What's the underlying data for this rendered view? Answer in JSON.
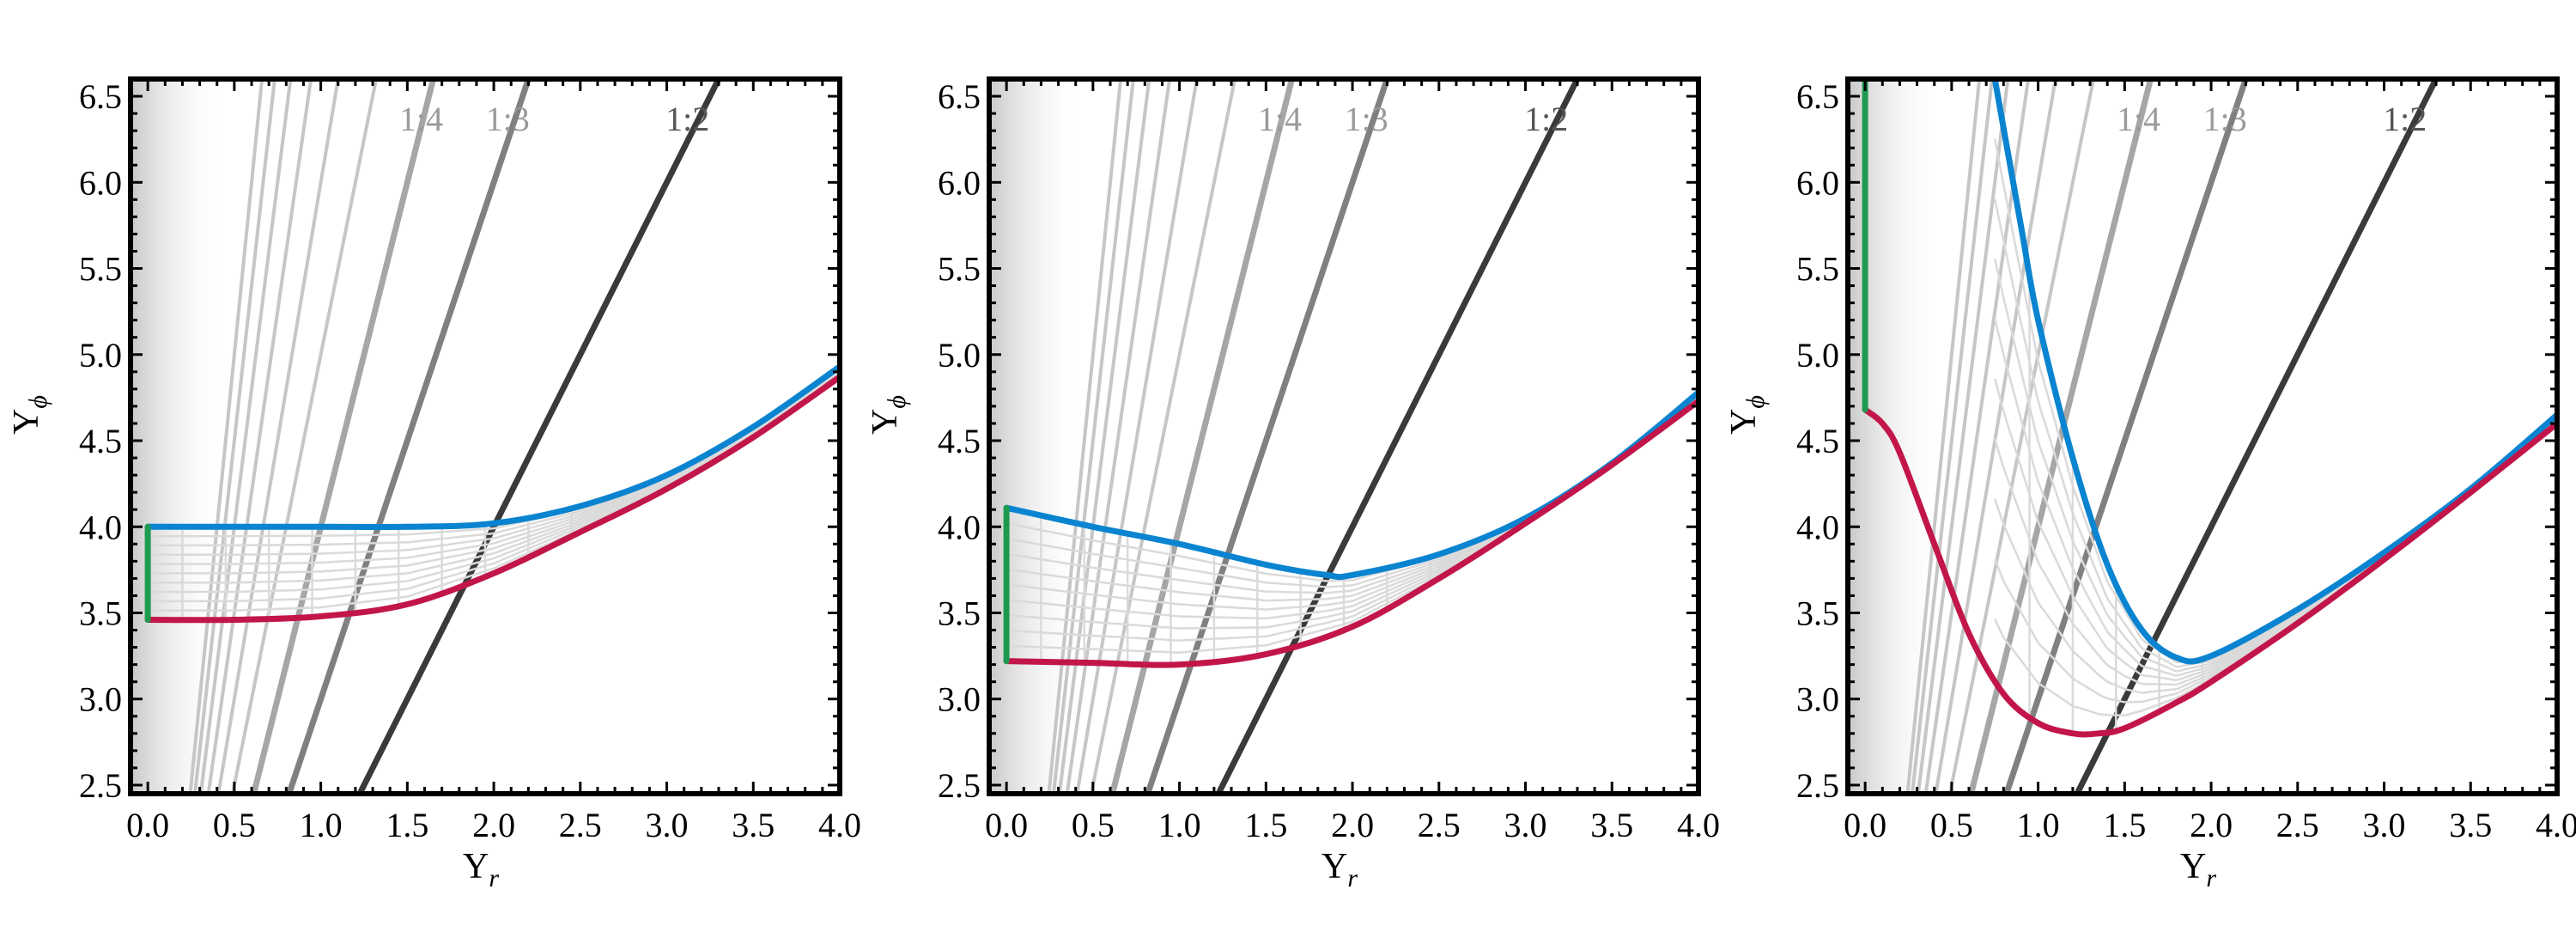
{
  "chart_data": [
    {
      "type": "line",
      "panel": 1,
      "xlabel": "Υ",
      "xlabel_sub": "r",
      "ylabel": "Υ",
      "ylabel_sub": "ϕ",
      "xlim": [
        -0.1,
        4.0
      ],
      "ylim": [
        2.45,
        6.6
      ],
      "xticks": [
        "0.0",
        "0.5",
        "1.0",
        "1.5",
        "2.0",
        "2.5",
        "3.0",
        "3.5",
        "4.0"
      ],
      "yticks": [
        "2.5",
        "3.0",
        "3.5",
        "4.0",
        "4.5",
        "5.0",
        "5.5",
        "6.0",
        "6.5"
      ],
      "resonance_labels": [
        {
          "text": "1:4",
          "x": 1.58,
          "y": 6.3
        },
        {
          "text": "1:3",
          "x": 2.08,
          "y": 6.3
        },
        {
          "text": "1:2",
          "x": 3.12,
          "y": 6.3
        }
      ],
      "resonance_lines": [
        {
          "ratio": "1:2",
          "slope": 2.0,
          "tone": "dark"
        },
        {
          "ratio": "1:3",
          "slope": 3.0,
          "tone": "mid"
        },
        {
          "ratio": "1:4",
          "slope": 4.0,
          "tone": "mid2"
        },
        {
          "ratio": "1:5",
          "slope": 5.0,
          "tone": "light"
        },
        {
          "ratio": "1:6",
          "slope": 6.0,
          "tone": "light"
        },
        {
          "ratio": "1:7",
          "slope": 7.0,
          "tone": "light"
        },
        {
          "ratio": "1:8",
          "slope": 8.0,
          "tone": "light"
        },
        {
          "ratio": "1:9",
          "slope": 9.0,
          "tone": "light"
        },
        {
          "ratio": "1:10",
          "slope": 10.0,
          "tone": "light"
        }
      ],
      "series": [
        {
          "color": "#0a84d0",
          "x": [
            0.0,
            0.5,
            1.0,
            1.5,
            2.0,
            2.5,
            3.0,
            3.5,
            4.0
          ],
          "y": [
            4.0,
            4.0,
            4.0,
            4.0,
            4.02,
            4.12,
            4.3,
            4.58,
            4.93
          ]
        },
        {
          "color": "#c2164a",
          "x": [
            0.0,
            0.5,
            1.0,
            1.5,
            2.0,
            2.5,
            3.0,
            3.5,
            4.0
          ],
          "y": [
            3.46,
            3.46,
            3.48,
            3.55,
            3.73,
            3.97,
            4.22,
            4.52,
            4.87
          ]
        },
        {
          "color": "#1e9a4e",
          "x": [
            0.0,
            0.0
          ],
          "y": [
            3.46,
            4.0
          ]
        }
      ]
    },
    {
      "type": "line",
      "panel": 2,
      "xlabel": "Υ",
      "xlabel_sub": "r",
      "ylabel": "Υ",
      "ylabel_sub": "ϕ",
      "xlim": [
        -0.1,
        4.0
      ],
      "ylim": [
        2.45,
        6.6
      ],
      "xticks": [
        "0.0",
        "0.5",
        "1.0",
        "1.5",
        "2.0",
        "2.5",
        "3.0",
        "3.5",
        "4.0"
      ],
      "yticks": [
        "2.5",
        "3.0",
        "3.5",
        "4.0",
        "4.5",
        "5.0",
        "5.5",
        "6.0",
        "6.5"
      ],
      "resonance_labels": [
        {
          "text": "1:4",
          "x": 1.58,
          "y": 6.3
        },
        {
          "text": "1:3",
          "x": 2.08,
          "y": 6.3
        },
        {
          "text": "1:2",
          "x": 3.12,
          "y": 6.3
        }
      ],
      "resonance_lines": [
        {
          "ratio": "1:2",
          "slope": 2.0,
          "tone": "dark"
        },
        {
          "ratio": "1:3",
          "slope": 3.0,
          "tone": "mid"
        },
        {
          "ratio": "1:4",
          "slope": 4.0,
          "tone": "mid2"
        },
        {
          "ratio": "1:5",
          "slope": 5.0,
          "tone": "light"
        },
        {
          "ratio": "1:6",
          "slope": 6.0,
          "tone": "light"
        },
        {
          "ratio": "1:7",
          "slope": 7.0,
          "tone": "light"
        },
        {
          "ratio": "1:8",
          "slope": 8.0,
          "tone": "light"
        },
        {
          "ratio": "1:9",
          "slope": 9.0,
          "tone": "light"
        },
        {
          "ratio": "1:10",
          "slope": 10.0,
          "tone": "light"
        }
      ],
      "series": [
        {
          "color": "#0a84d0",
          "x": [
            0.0,
            0.5,
            1.0,
            1.5,
            1.85,
            2.0,
            2.5,
            3.0,
            3.5,
            4.0
          ],
          "y": [
            4.11,
            4.0,
            3.9,
            3.78,
            3.72,
            3.72,
            3.84,
            4.05,
            4.37,
            4.78
          ]
        },
        {
          "color": "#c2164a",
          "x": [
            0.0,
            0.5,
            1.0,
            1.5,
            2.0,
            2.5,
            3.0,
            3.5,
            4.0
          ],
          "y": [
            3.22,
            3.21,
            3.2,
            3.26,
            3.42,
            3.7,
            4.02,
            4.36,
            4.73
          ]
        },
        {
          "color": "#1e9a4e",
          "x": [
            0.0,
            0.0
          ],
          "y": [
            3.22,
            4.11
          ]
        }
      ]
    },
    {
      "type": "line",
      "panel": 3,
      "xlabel": "Υ",
      "xlabel_sub": "r",
      "ylabel": "Υ",
      "ylabel_sub": "ϕ",
      "xlim": [
        -0.1,
        4.0
      ],
      "ylim": [
        2.45,
        6.6
      ],
      "xticks": [
        "0.0",
        "0.5",
        "1.0",
        "1.5",
        "2.0",
        "2.5",
        "3.0",
        "3.5",
        "4.0"
      ],
      "yticks": [
        "2.5",
        "3.0",
        "3.5",
        "4.0",
        "4.5",
        "5.0",
        "5.5",
        "6.0",
        "6.5"
      ],
      "resonance_labels": [
        {
          "text": "1:4",
          "x": 1.58,
          "y": 6.3
        },
        {
          "text": "1:3",
          "x": 2.08,
          "y": 6.3
        },
        {
          "text": "1:2",
          "x": 3.12,
          "y": 6.3
        }
      ],
      "resonance_lines": [
        {
          "ratio": "1:2",
          "slope": 2.0,
          "tone": "dark"
        },
        {
          "ratio": "1:3",
          "slope": 3.0,
          "tone": "mid"
        },
        {
          "ratio": "1:4",
          "slope": 4.0,
          "tone": "mid2"
        },
        {
          "ratio": "1:5",
          "slope": 5.0,
          "tone": "light"
        },
        {
          "ratio": "1:6",
          "slope": 6.0,
          "tone": "light"
        },
        {
          "ratio": "1:7",
          "slope": 7.0,
          "tone": "light"
        },
        {
          "ratio": "1:8",
          "slope": 8.0,
          "tone": "light"
        },
        {
          "ratio": "1:9",
          "slope": 9.0,
          "tone": "light"
        },
        {
          "ratio": "1:10",
          "slope": 10.0,
          "tone": "light"
        }
      ],
      "series": [
        {
          "color": "#0a84d0",
          "x": [
            0.75,
            0.9,
            1.0,
            1.2,
            1.4,
            1.6,
            1.8,
            2.0,
            2.5,
            3.0,
            3.5,
            4.0
          ],
          "y": [
            6.6,
            5.75,
            5.2,
            4.4,
            3.78,
            3.4,
            3.24,
            3.25,
            3.52,
            3.85,
            4.22,
            4.65
          ]
        },
        {
          "color": "#c2164a",
          "x": [
            0.0,
            0.1,
            0.2,
            0.4,
            0.6,
            0.8,
            1.0,
            1.2,
            1.35,
            1.5,
            1.8,
            2.0,
            2.5,
            3.0,
            3.5,
            4.0
          ],
          "y": [
            4.68,
            4.6,
            4.43,
            3.9,
            3.38,
            3.03,
            2.86,
            2.8,
            2.8,
            2.83,
            2.98,
            3.1,
            3.44,
            3.81,
            4.2,
            4.6
          ]
        },
        {
          "color": "#1e9a4e",
          "x": [
            0.0,
            0.0
          ],
          "y": [
            4.68,
            6.6
          ]
        }
      ]
    }
  ]
}
